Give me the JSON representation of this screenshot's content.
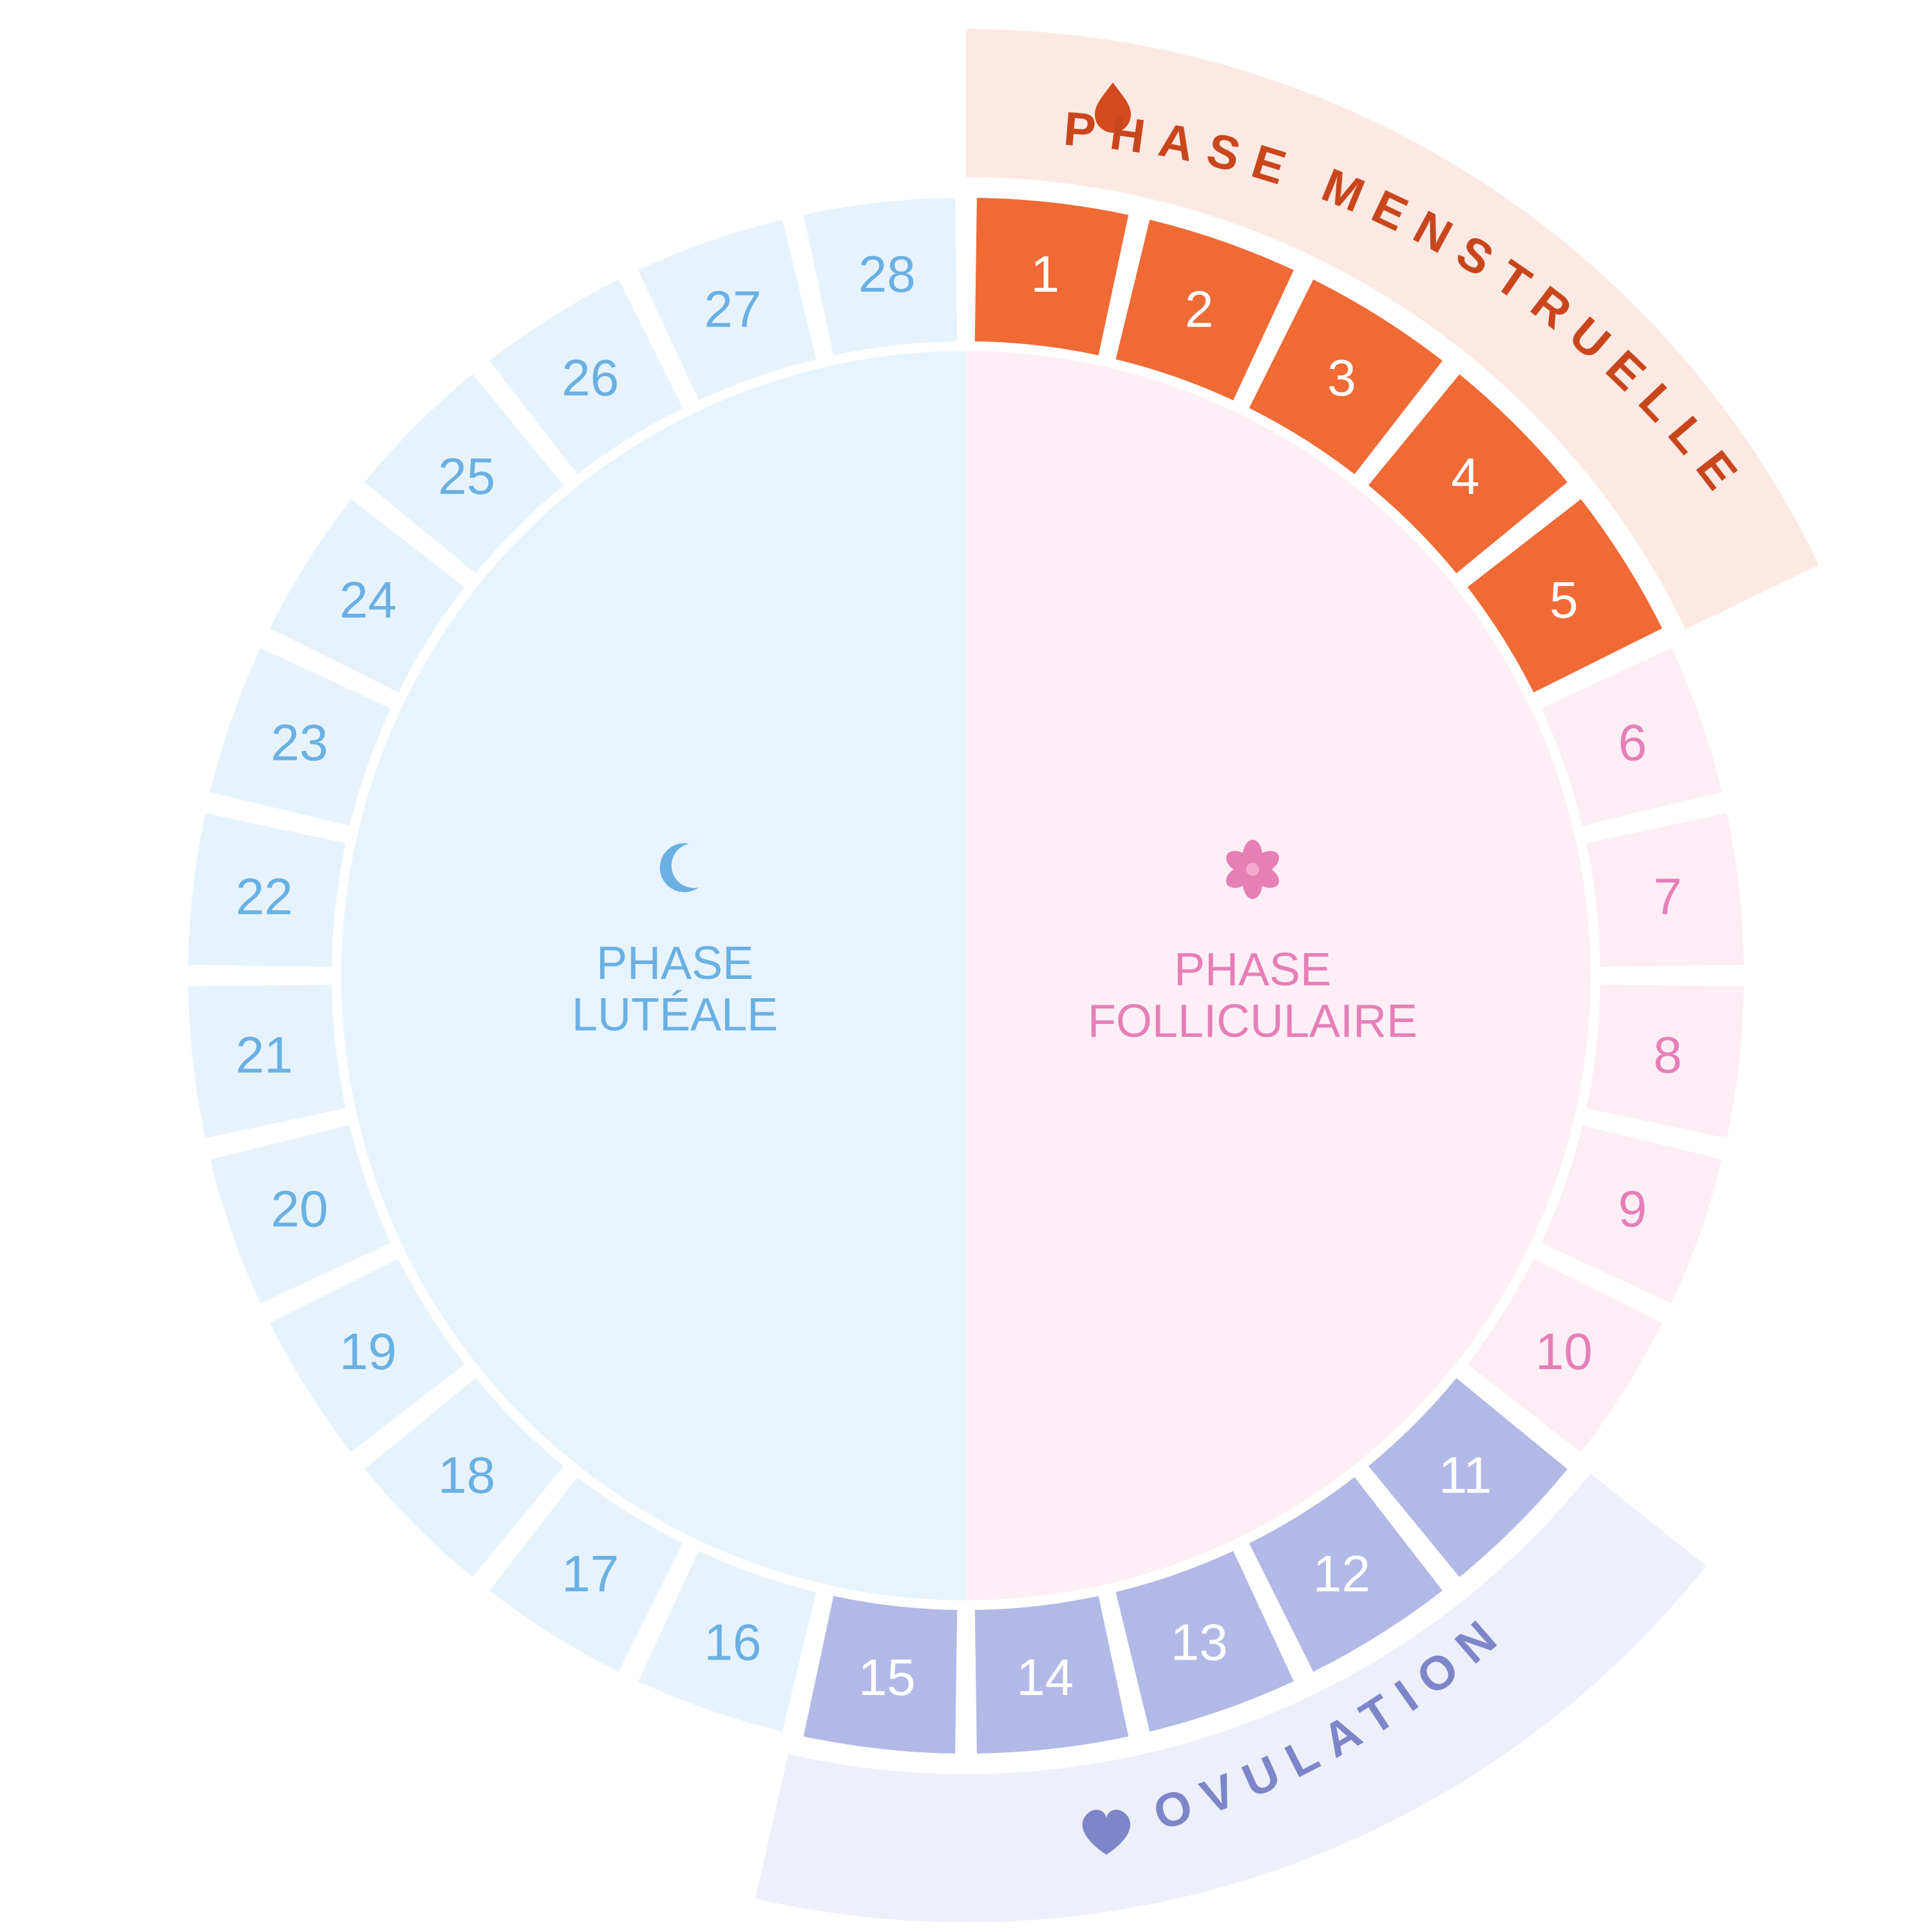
{
  "days": [
    "1",
    "2",
    "3",
    "4",
    "5",
    "6",
    "7",
    "8",
    "9",
    "10",
    "11",
    "12",
    "13",
    "14",
    "15",
    "16",
    "17",
    "18",
    "19",
    "20",
    "21",
    "22",
    "23",
    "24",
    "25",
    "26",
    "27",
    "28"
  ],
  "phases": {
    "follicular": {
      "line1": "PHASE",
      "line2": "FOLLICULAIRE",
      "icon": "flower-icon",
      "color": "#E67FB5"
    },
    "luteal": {
      "line1": "PHASE",
      "line2": "LUTÉALE",
      "icon": "moon-icon",
      "color": "#6BB0E3"
    },
    "menstrual": {
      "label": "PHASE MENSTRUELLE",
      "icon": "drop-icon",
      "color": "#C9461D"
    },
    "ovulation": {
      "label": "OVULATION",
      "icon": "heart-icon",
      "color": "#7D86C8"
    }
  },
  "colors": {
    "menstrual_cell": "#F06A36",
    "menstrual_band": "#FDE9E3",
    "ovulation_cell": "#B3B9E6",
    "ovulation_band": "#EDEFFB",
    "follicular_cell": "#FDEEF5",
    "follicular_inner": "#FEEFF6",
    "luteal_cell": "#E7F3FC",
    "luteal_inner": "#E7F4FD",
    "white_text": "#FFFFFF"
  }
}
